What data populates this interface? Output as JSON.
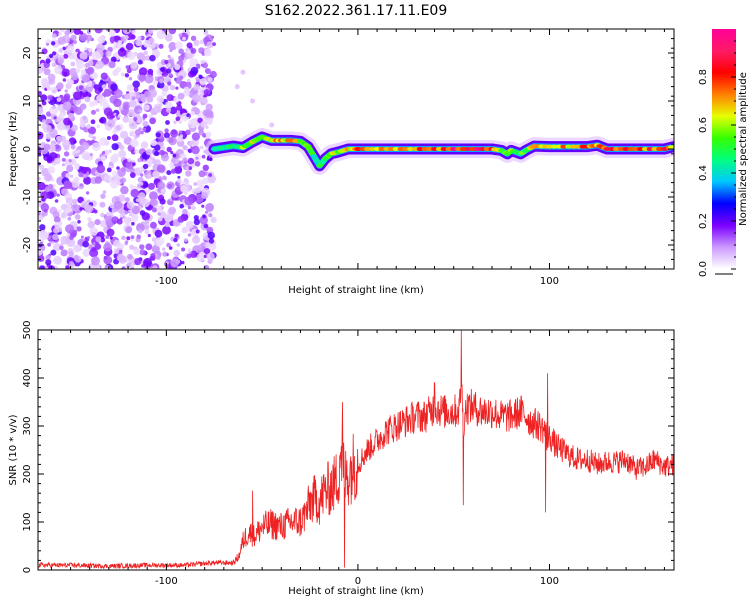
{
  "chart_data": [
    {
      "type": "heatmap",
      "title": "S162.2022.361.17.11.E09",
      "xlabel": "Height of straight line (km)",
      "ylabel": "Frequency (Hz)",
      "xlim": [
        -167,
        165
      ],
      "ylim": [
        -25,
        25
      ],
      "x_ticks": [
        -100,
        0,
        100
      ],
      "x_tick_labels": [
        "-100",
        "",
        "100"
      ],
      "y_ticks": [
        -20,
        -10,
        0,
        10,
        20
      ],
      "y_tick_labels": [
        "-20",
        "-10",
        "0",
        "10",
        "20"
      ],
      "colorbar": {
        "label": "Normalized spectral amplitude",
        "range": [
          0,
          1
        ],
        "ticks": [
          0.0,
          0.2,
          0.4,
          0.6,
          0.8
        ],
        "tick_labels": [
          "0.0",
          "0.2",
          "0.4",
          "0.6",
          "0.8"
        ],
        "colormap": [
          "#ffffff",
          "#cc99ff",
          "#7a00ff",
          "#0000ff",
          "#00c8ff",
          "#00ff80",
          "#33ff00",
          "#e6ff00",
          "#ff8000",
          "#ff0000",
          "#ff1a66",
          "#ff0099"
        ]
      },
      "noise_region": {
        "x_range": [
          -167,
          -75
        ],
        "y_range": [
          -25,
          25
        ],
        "amplitude_range": [
          0.0,
          0.2
        ]
      },
      "signal_trace": {
        "x": [
          -75,
          -70,
          -65,
          -60,
          -55,
          -50,
          -45,
          -40,
          -35,
          -30,
          -26,
          -23,
          -20,
          -17,
          -14,
          -10,
          -5,
          0,
          10,
          20,
          30,
          40,
          50,
          60,
          70,
          75,
          78,
          80,
          85,
          88,
          92,
          100,
          110,
          120,
          125,
          130,
          140,
          150,
          160,
          165
        ],
        "y": [
          0.0,
          0.3,
          0.6,
          0.3,
          1.5,
          2.5,
          1.8,
          1.8,
          1.8,
          1.6,
          0.5,
          -1.5,
          -3.5,
          -2.0,
          -1.0,
          -0.6,
          0.0,
          0.0,
          0.0,
          0.0,
          0.0,
          0.0,
          0.0,
          0.0,
          0.0,
          -0.3,
          -1.0,
          -0.3,
          -1.0,
          -0.2,
          0.6,
          0.5,
          0.5,
          0.5,
          0.8,
          0.0,
          0.0,
          0.0,
          0.0,
          0.5
        ],
        "peak_amplitude": [
          0.4,
          0.5,
          0.5,
          0.6,
          0.65,
          0.6,
          0.7,
          0.75,
          0.8,
          0.7,
          0.6,
          0.5,
          0.5,
          0.55,
          0.6,
          0.7,
          0.75,
          0.8,
          0.85,
          0.85,
          0.85,
          0.85,
          0.95,
          0.95,
          0.85,
          0.65,
          0.55,
          0.6,
          0.55,
          0.6,
          0.7,
          0.75,
          0.75,
          0.8,
          0.75,
          0.85,
          0.85,
          0.85,
          0.85,
          0.75
        ]
      }
    },
    {
      "type": "line",
      "title": "",
      "xlabel": "Height of straight line (km)",
      "ylabel": "SNR (10 * v/v)",
      "xlim": [
        -167,
        165
      ],
      "ylim": [
        0,
        500
      ],
      "x_ticks": [
        -100,
        0,
        100
      ],
      "x_tick_labels": [
        "-100",
        "0",
        "100"
      ],
      "y_ticks": [
        0,
        100,
        200,
        300,
        400,
        500
      ],
      "y_tick_labels": [
        "0",
        "100",
        "200",
        "300",
        "400",
        "500"
      ],
      "series": [
        {
          "color": "#ee2222",
          "x": [
            -167,
            -150,
            -130,
            -110,
            -90,
            -75,
            -65,
            -62,
            -60,
            -57,
            -54,
            -50,
            -45,
            -40,
            -35,
            -30,
            -27,
            -25,
            -22,
            -20,
            -18,
            -15,
            -12,
            -10,
            -9,
            -7,
            -5,
            -2,
            0,
            5,
            10,
            15,
            20,
            25,
            30,
            35,
            38,
            40,
            42,
            45,
            50,
            53,
            54,
            55,
            56,
            57,
            60,
            65,
            70,
            75,
            80,
            85,
            88,
            90,
            95,
            98,
            99,
            100,
            103,
            110,
            115,
            120,
            125,
            130,
            135,
            140,
            145,
            150,
            155,
            160,
            165
          ],
          "y": [
            10,
            10,
            8,
            10,
            10,
            15,
            15,
            30,
            60,
            80,
            70,
            90,
            95,
            90,
            100,
            100,
            120,
            140,
            150,
            140,
            160,
            170,
            180,
            200,
            260,
            190,
            200,
            220,
            220,
            250,
            270,
            290,
            300,
            310,
            320,
            320,
            330,
            340,
            335,
            330,
            330,
            335,
            400,
            300,
            330,
            340,
            340,
            330,
            330,
            320,
            320,
            330,
            320,
            310,
            300,
            290,
            250,
            280,
            260,
            240,
            230,
            230,
            220,
            225,
            225,
            230,
            210,
            215,
            230,
            215,
            220
          ],
          "spikes": [
            {
              "x": -55,
              "y": 165
            },
            {
              "x": -8,
              "y": 350
            },
            {
              "x": -7,
              "y": 5
            },
            {
              "x": 40,
              "y": 390
            },
            {
              "x": 54,
              "y": 500
            },
            {
              "x": 55,
              "y": 135
            },
            {
              "x": 99,
              "y": 410
            },
            {
              "x": 98,
              "y": 120
            }
          ]
        }
      ]
    }
  ]
}
